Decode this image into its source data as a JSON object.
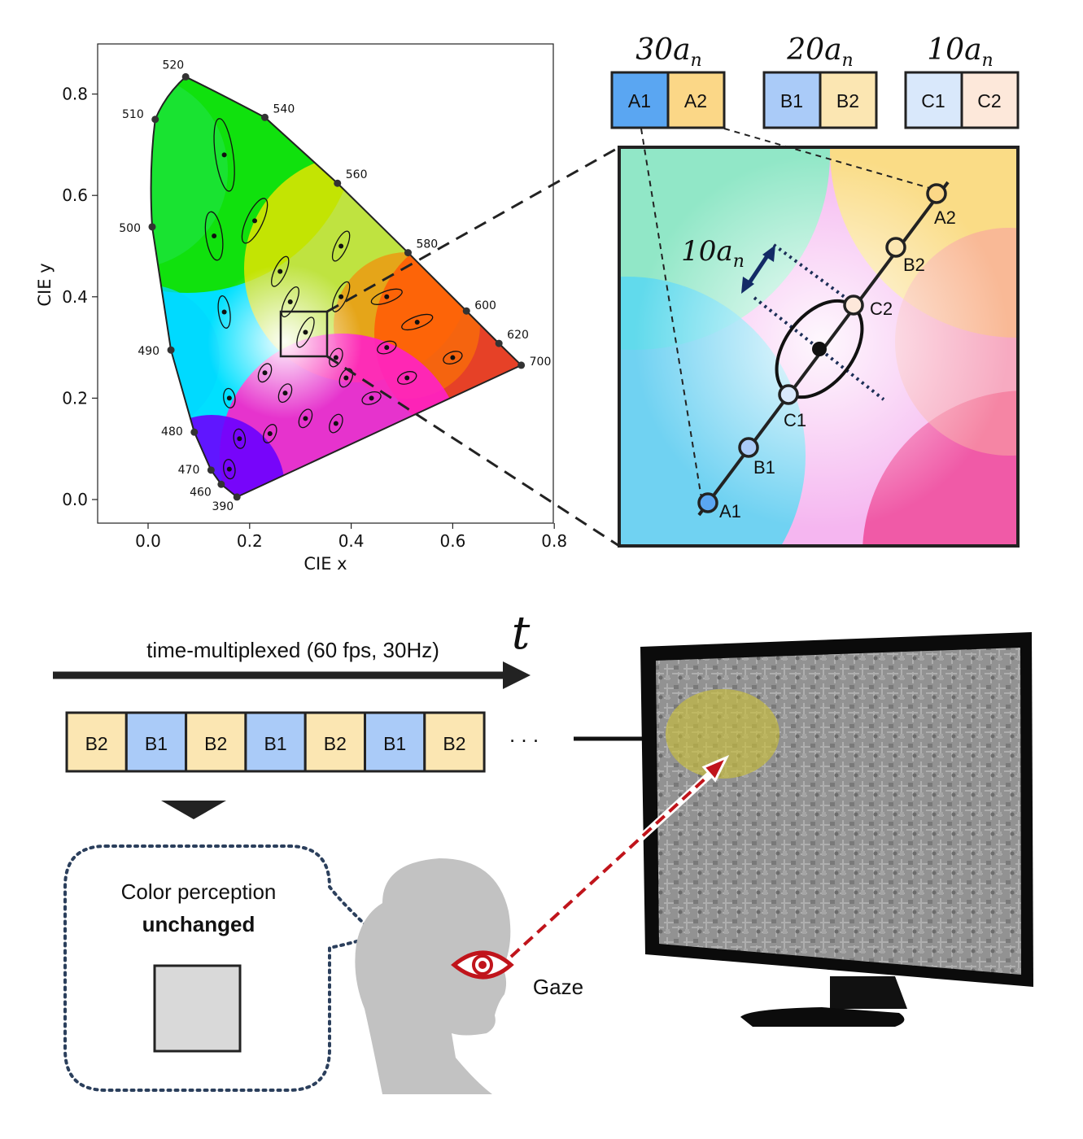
{
  "cie_chart": {
    "xlabel": "CIE x",
    "ylabel": "CIE y",
    "xticks": [
      "0.0",
      "0.2",
      "0.4",
      "0.6",
      "0.8"
    ],
    "yticks": [
      "0.0",
      "0.2",
      "0.4",
      "0.6",
      "0.8"
    ],
    "wavelengths": [
      "390",
      "460",
      "470",
      "480",
      "490",
      "500",
      "510",
      "520",
      "540",
      "560",
      "580",
      "600",
      "620",
      "700"
    ]
  },
  "chart_data": {
    "type": "scatter",
    "xlabel": "CIE x",
    "ylabel": "CIE y",
    "xlim": [
      -0.1,
      0.8
    ],
    "ylim": [
      -0.05,
      0.9
    ],
    "locus": [
      {
        "label": "390",
        "x": 0.175,
        "y": 0.005
      },
      {
        "label": "460",
        "x": 0.144,
        "y": 0.03
      },
      {
        "label": "470",
        "x": 0.124,
        "y": 0.058
      },
      {
        "label": "480",
        "x": 0.091,
        "y": 0.133
      },
      {
        "label": "490",
        "x": 0.045,
        "y": 0.295
      },
      {
        "label": "500",
        "x": 0.008,
        "y": 0.538
      },
      {
        "label": "510",
        "x": 0.014,
        "y": 0.75
      },
      {
        "label": "520",
        "x": 0.074,
        "y": 0.834
      },
      {
        "label": "540",
        "x": 0.23,
        "y": 0.754
      },
      {
        "label": "560",
        "x": 0.373,
        "y": 0.624
      },
      {
        "label": "580",
        "x": 0.512,
        "y": 0.487
      },
      {
        "label": "600",
        "x": 0.627,
        "y": 0.372
      },
      {
        "label": "620",
        "x": 0.691,
        "y": 0.308
      },
      {
        "label": "700",
        "x": 0.735,
        "y": 0.265
      }
    ],
    "ellipse_centers": [
      {
        "x": 0.15,
        "y": 0.68
      },
      {
        "x": 0.21,
        "y": 0.55
      },
      {
        "x": 0.13,
        "y": 0.52
      },
      {
        "x": 0.26,
        "y": 0.45
      },
      {
        "x": 0.38,
        "y": 0.5
      },
      {
        "x": 0.15,
        "y": 0.37
      },
      {
        "x": 0.28,
        "y": 0.39
      },
      {
        "x": 0.38,
        "y": 0.4
      },
      {
        "x": 0.47,
        "y": 0.4
      },
      {
        "x": 0.31,
        "y": 0.33
      },
      {
        "x": 0.53,
        "y": 0.35
      },
      {
        "x": 0.47,
        "y": 0.3
      },
      {
        "x": 0.6,
        "y": 0.28
      },
      {
        "x": 0.37,
        "y": 0.28
      },
      {
        "x": 0.23,
        "y": 0.25
      },
      {
        "x": 0.39,
        "y": 0.24
      },
      {
        "x": 0.27,
        "y": 0.21
      },
      {
        "x": 0.51,
        "y": 0.24
      },
      {
        "x": 0.16,
        "y": 0.2
      },
      {
        "x": 0.44,
        "y": 0.2
      },
      {
        "x": 0.31,
        "y": 0.16
      },
      {
        "x": 0.37,
        "y": 0.15
      },
      {
        "x": 0.24,
        "y": 0.13
      },
      {
        "x": 0.18,
        "y": 0.12
      },
      {
        "x": 0.16,
        "y": 0.06
      }
    ]
  },
  "boxes": {
    "labels": [
      "30a_n",
      "20a_n",
      "10a_n"
    ],
    "pairs": [
      [
        "A1",
        "A2"
      ],
      [
        "B1",
        "B2"
      ],
      [
        "C1",
        "C2"
      ]
    ],
    "colors": {
      "A1": "#5aa6f2",
      "A2": "#fbd787",
      "B1": "#aacbf8",
      "B2": "#fbe6b2",
      "C1": "#d9e8fb",
      "C2": "#fde8da"
    }
  },
  "zoom": {
    "step_label": "10a_n",
    "points": [
      "A1",
      "B1",
      "C1",
      "C2",
      "B2",
      "A2"
    ]
  },
  "timeline": {
    "title": "time-multiplexed  (60 fps, 30Hz)",
    "axis_label": "t",
    "sequence": [
      "B2",
      "B1",
      "B2",
      "B1",
      "B2",
      "B1",
      "B2"
    ],
    "ellipsis": ". . ."
  },
  "perception": {
    "line1": "Color perception",
    "line2": "unchanged",
    "swatch_color": "#d9d9d9"
  },
  "gaze_label": "Gaze",
  "colors": {
    "dark_outline": "#222222",
    "gaze_red": "#c0141b",
    "bubble_dots": "#2b3f5c",
    "head_gray": "#c2c2c2",
    "fovea_yellow": "#c8bd3a"
  }
}
